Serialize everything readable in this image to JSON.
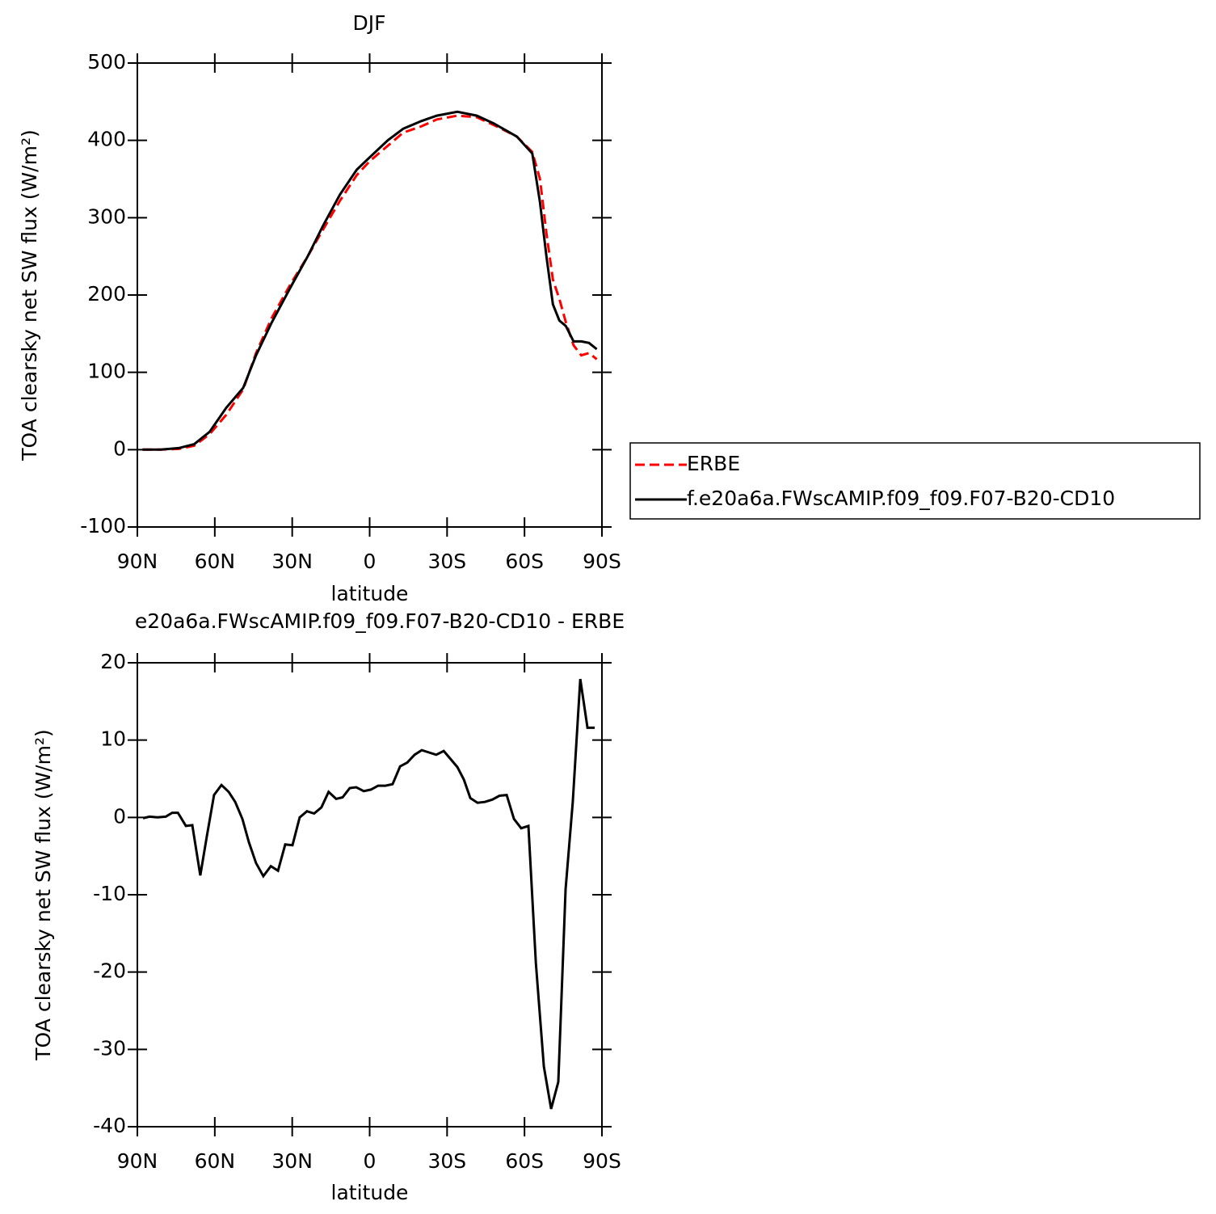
{
  "chart_data": [
    {
      "type": "line",
      "title": "DJF",
      "xlabel": "latitude",
      "ylabel": "TOA clearsky net SW flux (W/m²)",
      "x": [
        88,
        81,
        74,
        68,
        62,
        55.6,
        49,
        44,
        38,
        30.5,
        24,
        18,
        11.5,
        5,
        0,
        -7,
        -13,
        -20,
        -26,
        -34,
        -41.5,
        -48,
        -57,
        -63,
        -66,
        -68.5,
        -71,
        -73.5,
        -76,
        -79,
        -82,
        -85,
        -88
      ],
      "series": [
        {
          "name": "ERBE",
          "color": "#ff0000",
          "dashed": true,
          "values": [
            0,
            0,
            1,
            5,
            20,
            45,
            78,
            125,
            170,
            215,
            250,
            285,
            322,
            355,
            373,
            393,
            410,
            418,
            427,
            432,
            430,
            420,
            405,
            385,
            350,
            280,
            220,
            195,
            165,
            135,
            122,
            125,
            117
          ]
        },
        {
          "name": "f.e20a6a.FWscAMIP.f09_f09.F07-B20-CD10",
          "color": "#000000",
          "dashed": false,
          "values": [
            0,
            0,
            2,
            7,
            23,
            54,
            80,
            122,
            164,
            211,
            250,
            290,
            330,
            362,
            378,
            400,
            415,
            425,
            432,
            437,
            432,
            422,
            405,
            383,
            320,
            250,
            188,
            167,
            160,
            140,
            140,
            138,
            130
          ]
        }
      ],
      "xlim": [
        90,
        -90
      ],
      "xticks": [
        {
          "value": 90,
          "label": "90N"
        },
        {
          "value": 60,
          "label": "60N"
        },
        {
          "value": 30,
          "label": "30N"
        },
        0,
        {
          "value": -30,
          "label": "30S"
        },
        {
          "value": -60,
          "label": "60S"
        },
        {
          "value": -90,
          "label": "90S"
        }
      ],
      "ylim": [
        -100,
        500
      ],
      "yticks": [
        -100,
        0,
        100,
        200,
        300,
        400,
        500
      ],
      "legend": "right"
    },
    {
      "type": "line",
      "title": "e20a6a.FWscAMIP.f09_f09.F07-B20-CD10 - ERBE",
      "xlabel": "latitude",
      "ylabel": "TOA clearsky net SW flux (W/m²)",
      "color": "#000000",
      "x": [
        87.8,
        85.3,
        82.2,
        79.0,
        76.5,
        74.3,
        71.2,
        68.7,
        65.6,
        63.1,
        60.3,
        57.4,
        54.6,
        52.1,
        49.3,
        46.8,
        44.0,
        41.2,
        38.3,
        35.5,
        32.7,
        29.9,
        27.1,
        24.3,
        21.5,
        18.7,
        15.9,
        13.0,
        10.5,
        7.7,
        5.2,
        2.3,
        -0.5,
        -3.3,
        -6.1,
        -8.9,
        -11.8,
        -14.6,
        -17.4,
        -20.2,
        -23.0,
        -25.8,
        -28.7,
        -31.5,
        -34.0,
        -36.5,
        -39.0,
        -41.8,
        -44.6,
        -47.5,
        -50.3,
        -53.1,
        -55.9,
        -58.7,
        -61.5,
        -64.4,
        -67.5,
        -70.3,
        -73.1,
        -75.9,
        -78.7,
        -81.6,
        -84.4,
        -87.2
      ],
      "values": [
        -0.1,
        0.1,
        0,
        0.1,
        0.6,
        0.6,
        -1.1,
        -1.0,
        -7.5,
        -2.5,
        2.9,
        4.2,
        3.3,
        2,
        -0.2,
        -3.2,
        -5.9,
        -7.6,
        -6.3,
        -6.9,
        -3.5,
        -3.6,
        0,
        0.8,
        0.5,
        1.3,
        3.3,
        2.4,
        2.6,
        3.8,
        3.9,
        3.4,
        3.6,
        4.1,
        4.1,
        4.3,
        6.6,
        7.1,
        8.1,
        8.7,
        8.4,
        8.1,
        8.6,
        7.5,
        6.5,
        4.9,
        2.5,
        1.9,
        2.0,
        2.3,
        2.8,
        2.9,
        -0.2,
        -1.4,
        -1.1,
        -18.8,
        -32.2,
        -37.7,
        -34.2,
        -9.3,
        2,
        17.9,
        11.6,
        11.6
      ],
      "xlim": [
        90,
        -90
      ],
      "xticks": [
        {
          "value": 90,
          "label": "90N"
        },
        {
          "value": 60,
          "label": "60N"
        },
        {
          "value": 30,
          "label": "30N"
        },
        0,
        {
          "value": -30,
          "label": "30S"
        },
        {
          "value": -60,
          "label": "60S"
        },
        {
          "value": -90,
          "label": "90S"
        }
      ],
      "ylim": [
        -40,
        20
      ],
      "yticks": [
        -40,
        -30,
        -20,
        -10,
        0,
        10,
        20
      ]
    }
  ]
}
